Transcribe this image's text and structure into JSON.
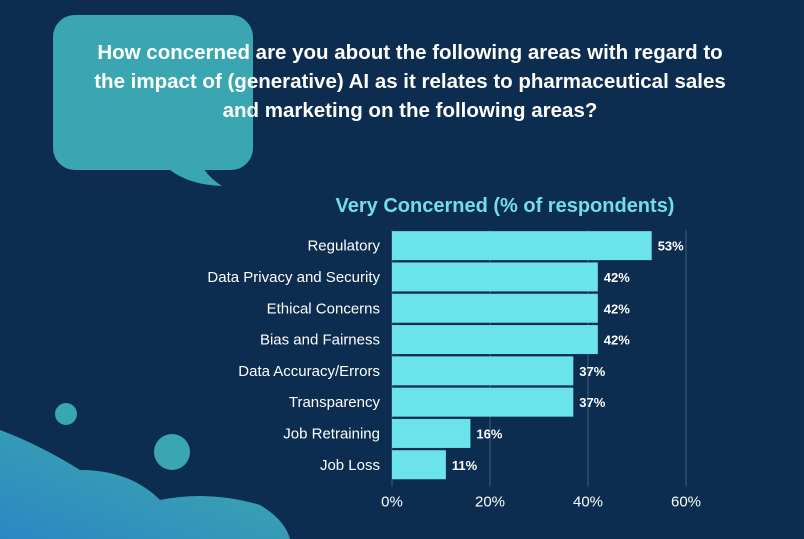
{
  "question": "How concerned are you about the following areas with regard to the impact of (generative) AI as it relates to pharmaceutical sales and marketing on the following areas?",
  "colors": {
    "background": "#0c2d4f",
    "bar": "#6be3ea",
    "accent_teal": "#3aa6b2",
    "title_text": "#73dde8",
    "gridline": "#3f5f80"
  },
  "icons": [
    "speech-bubble-icon"
  ],
  "chart_data": {
    "type": "bar",
    "orientation": "horizontal",
    "title": "Very Concerned (% of respondents)",
    "categories": [
      "Regulatory",
      "Data Privacy and Security",
      "Ethical Concerns",
      "Bias and Fairness",
      "Data Accuracy/Errors",
      "Transparency",
      "Job Retraining",
      "Job Loss"
    ],
    "values": [
      53,
      42,
      42,
      42,
      37,
      37,
      16,
      11
    ],
    "data_labels": [
      "53%",
      "42%",
      "42%",
      "42%",
      "37%",
      "37%",
      "16%",
      "11%"
    ],
    "xlim": [
      0,
      60
    ],
    "xticks": [
      0,
      20,
      40,
      60
    ],
    "xtick_labels": [
      "0%",
      "20%",
      "40%",
      "60%"
    ],
    "grid": true,
    "legend": "none"
  }
}
